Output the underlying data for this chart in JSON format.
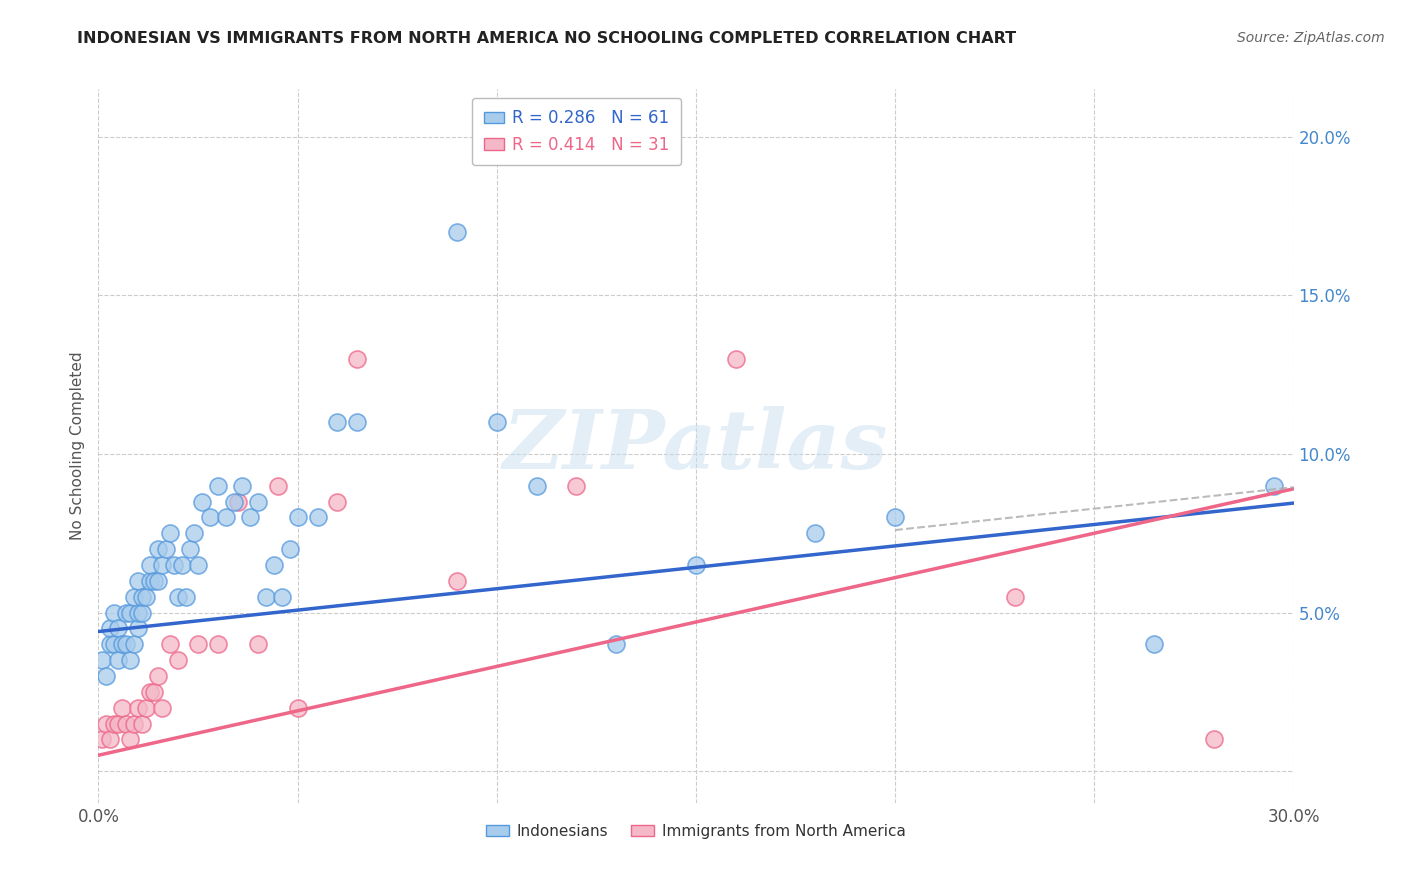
{
  "title": "INDONESIAN VS IMMIGRANTS FROM NORTH AMERICA NO SCHOOLING COMPLETED CORRELATION CHART",
  "source": "Source: ZipAtlas.com",
  "ylabel": "No Schooling Completed",
  "watermark": "ZIPatlas",
  "xlim": [
    0.0,
    0.3
  ],
  "ylim": [
    -0.01,
    0.215
  ],
  "xticks": [
    0.0,
    0.05,
    0.1,
    0.15,
    0.2,
    0.25,
    0.3
  ],
  "yticks": [
    0.0,
    0.05,
    0.1,
    0.15,
    0.2
  ],
  "blue_R": "0.286",
  "blue_N": "61",
  "pink_R": "0.414",
  "pink_N": "31",
  "blue_color": "#a8ccec",
  "pink_color": "#f4b8c8",
  "blue_edge_color": "#5599dd",
  "pink_edge_color": "#ee6688",
  "blue_line_color": "#3366cc",
  "pink_line_color": "#ee6688",
  "legend_label_blue": "Indonesians",
  "legend_label_pink": "Immigrants from North America",
  "blue_line_intercept": 0.044,
  "blue_line_slope": 0.135,
  "pink_line_intercept": 0.005,
  "pink_line_slope": 0.28,
  "blue_x": [
    0.001,
    0.002,
    0.003,
    0.003,
    0.004,
    0.004,
    0.005,
    0.005,
    0.006,
    0.007,
    0.007,
    0.008,
    0.008,
    0.009,
    0.009,
    0.01,
    0.01,
    0.01,
    0.011,
    0.011,
    0.012,
    0.013,
    0.013,
    0.014,
    0.015,
    0.015,
    0.016,
    0.017,
    0.018,
    0.019,
    0.02,
    0.021,
    0.022,
    0.023,
    0.024,
    0.025,
    0.026,
    0.028,
    0.03,
    0.032,
    0.034,
    0.036,
    0.038,
    0.04,
    0.042,
    0.044,
    0.046,
    0.048,
    0.05,
    0.055,
    0.06,
    0.065,
    0.09,
    0.1,
    0.11,
    0.13,
    0.15,
    0.18,
    0.2,
    0.265,
    0.295
  ],
  "blue_y": [
    0.035,
    0.03,
    0.04,
    0.045,
    0.04,
    0.05,
    0.035,
    0.045,
    0.04,
    0.04,
    0.05,
    0.035,
    0.05,
    0.04,
    0.055,
    0.045,
    0.05,
    0.06,
    0.05,
    0.055,
    0.055,
    0.06,
    0.065,
    0.06,
    0.06,
    0.07,
    0.065,
    0.07,
    0.075,
    0.065,
    0.055,
    0.065,
    0.055,
    0.07,
    0.075,
    0.065,
    0.085,
    0.08,
    0.09,
    0.08,
    0.085,
    0.09,
    0.08,
    0.085,
    0.055,
    0.065,
    0.055,
    0.07,
    0.08,
    0.08,
    0.11,
    0.11,
    0.17,
    0.11,
    0.09,
    0.04,
    0.065,
    0.075,
    0.08,
    0.04,
    0.09
  ],
  "pink_x": [
    0.001,
    0.002,
    0.003,
    0.004,
    0.005,
    0.006,
    0.007,
    0.008,
    0.009,
    0.01,
    0.011,
    0.012,
    0.013,
    0.014,
    0.015,
    0.016,
    0.018,
    0.02,
    0.025,
    0.03,
    0.035,
    0.04,
    0.045,
    0.05,
    0.06,
    0.065,
    0.09,
    0.12,
    0.16,
    0.23,
    0.28
  ],
  "pink_y": [
    0.01,
    0.015,
    0.01,
    0.015,
    0.015,
    0.02,
    0.015,
    0.01,
    0.015,
    0.02,
    0.015,
    0.02,
    0.025,
    0.025,
    0.03,
    0.02,
    0.04,
    0.035,
    0.04,
    0.04,
    0.085,
    0.04,
    0.09,
    0.02,
    0.085,
    0.13,
    0.06,
    0.09,
    0.13,
    0.055,
    0.01
  ]
}
